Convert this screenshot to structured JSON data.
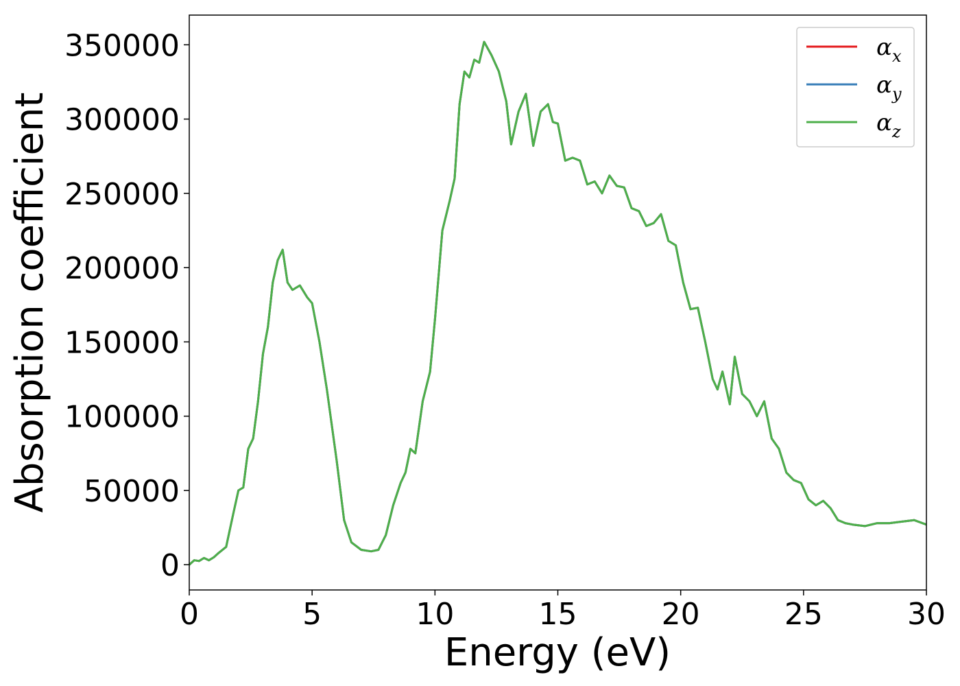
{
  "chart_data": {
    "type": "line",
    "title": "",
    "xlabel": "Energy (eV)",
    "ylabel": "Absorption coefficient",
    "xlim": [
      0,
      30
    ],
    "ylim": [
      -17000,
      370000
    ],
    "xticks": [
      0,
      5,
      10,
      15,
      20,
      25,
      30
    ],
    "xtick_labels": [
      "0",
      "5",
      "10",
      "15",
      "20",
      "25",
      "30"
    ],
    "yticks": [
      0,
      50000,
      100000,
      150000,
      200000,
      250000,
      300000,
      350000
    ],
    "ytick_labels": [
      "0",
      "50000",
      "100000",
      "150000",
      "200000",
      "250000",
      "300000",
      "350000"
    ],
    "grid": false,
    "legend_position": "top-right",
    "series": [
      {
        "name": "α",
        "subscript": "x",
        "color": "#e41a1c"
      },
      {
        "name": "α",
        "subscript": "y",
        "color": "#377eb8"
      },
      {
        "name": "α",
        "subscript": "z",
        "color": "#4daf4a"
      }
    ],
    "x": [
      0,
      0.2,
      0.4,
      0.6,
      0.8,
      1.0,
      1.2,
      1.5,
      1.8,
      2.0,
      2.2,
      2.4,
      2.6,
      2.8,
      3.0,
      3.2,
      3.4,
      3.6,
      3.8,
      4.0,
      4.2,
      4.5,
      4.8,
      5.0,
      5.3,
      5.6,
      6.0,
      6.3,
      6.6,
      7.0,
      7.4,
      7.7,
      8.0,
      8.3,
      8.6,
      8.8,
      9.0,
      9.2,
      9.5,
      9.8,
      10.0,
      10.3,
      10.6,
      10.8,
      11.0,
      11.2,
      11.4,
      11.6,
      11.8,
      12.0,
      12.3,
      12.6,
      12.9,
      13.1,
      13.4,
      13.7,
      14.0,
      14.3,
      14.6,
      14.8,
      15.0,
      15.3,
      15.6,
      15.9,
      16.2,
      16.5,
      16.8,
      17.1,
      17.4,
      17.7,
      18.0,
      18.3,
      18.6,
      18.9,
      19.2,
      19.5,
      19.8,
      20.1,
      20.4,
      20.7,
      21.0,
      21.3,
      21.5,
      21.7,
      22.0,
      22.2,
      22.5,
      22.8,
      23.1,
      23.4,
      23.7,
      24.0,
      24.3,
      24.6,
      24.9,
      25.2,
      25.5,
      25.8,
      26.1,
      26.4,
      26.7,
      27.0,
      27.5,
      28.0,
      28.5,
      29.0,
      29.5,
      30.0
    ],
    "y": [
      0,
      3000,
      2500,
      4500,
      3000,
      5000,
      8000,
      12000,
      35000,
      50000,
      52000,
      78000,
      85000,
      110000,
      142000,
      160000,
      190000,
      205000,
      212000,
      190000,
      185000,
      188000,
      180000,
      176000,
      150000,
      118000,
      70000,
      30000,
      15000,
      10000,
      9000,
      10000,
      20000,
      40000,
      55000,
      62000,
      78000,
      75000,
      110000,
      130000,
      165000,
      225000,
      245000,
      260000,
      310000,
      332000,
      328000,
      340000,
      338000,
      352000,
      343000,
      332000,
      312000,
      283000,
      305000,
      317000,
      282000,
      305000,
      310000,
      298000,
      297000,
      272000,
      274000,
      272000,
      256000,
      258000,
      250000,
      262000,
      255000,
      254000,
      240000,
      238000,
      228000,
      230000,
      236000,
      218000,
      215000,
      190000,
      172000,
      173000,
      150000,
      125000,
      118000,
      130000,
      108000,
      140000,
      115000,
      110000,
      100000,
      110000,
      85000,
      78000,
      62000,
      57000,
      55000,
      44000,
      40000,
      43000,
      38000,
      30000,
      28000,
      27000,
      26000,
      28000,
      28000,
      29000,
      30000,
      27000
    ]
  }
}
